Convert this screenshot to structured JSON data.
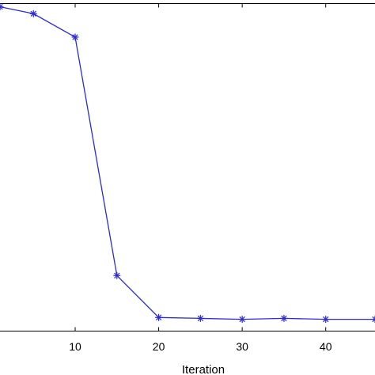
{
  "chart_data": {
    "type": "line",
    "title": "",
    "xlabel": "Iteration",
    "ylabel": "",
    "xlim": [
      1,
      45.9
    ],
    "ylim": [
      0.0,
      1.0
    ],
    "x_ticks": [
      10,
      20,
      30,
      40
    ],
    "x_tick_labels": [
      "10",
      "20",
      "30",
      "40"
    ],
    "grid": false,
    "series": [
      {
        "color": "#2b2bd4",
        "marker": "asterisk",
        "x": [
          1,
          5,
          10,
          15,
          20,
          25,
          30,
          35,
          40,
          45.9
        ],
        "y": [
          0.99,
          0.969,
          0.8975,
          0.1696,
          0.0416,
          0.0388,
          0.0361,
          0.0388,
          0.0361,
          0.0361
        ]
      }
    ]
  }
}
